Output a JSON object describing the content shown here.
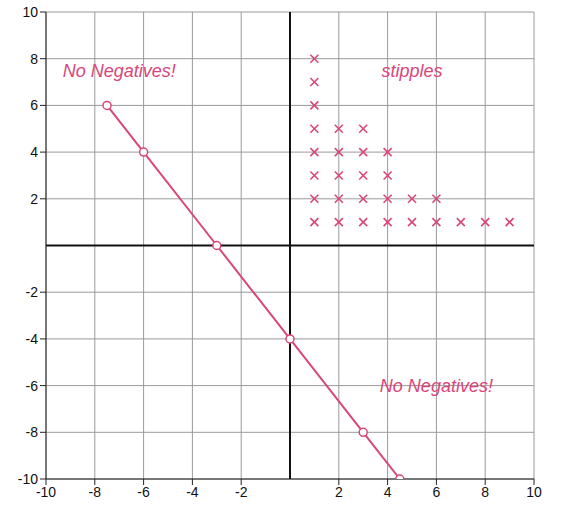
{
  "chart_data": {
    "type": "scatter",
    "xlim": [
      -10,
      10
    ],
    "ylim": [
      -10,
      10
    ],
    "xticks": [
      -10,
      -8,
      -6,
      -4,
      -2,
      2,
      4,
      6,
      8,
      10
    ],
    "yticks": [
      -10,
      -8,
      -6,
      -4,
      -2,
      2,
      4,
      6,
      8,
      10
    ],
    "grid": true,
    "series": [
      {
        "type": "line",
        "color": "#d9467a",
        "marker": "circle",
        "x": [
          -7.5,
          -6,
          -3,
          0,
          3,
          4.5
        ],
        "values": [
          6,
          4,
          0,
          -4,
          -8,
          -10
        ]
      },
      {
        "type": "scatter",
        "color": "#d9467a",
        "marker": "x",
        "x": [
          1,
          1,
          1,
          1,
          1,
          1,
          1,
          1,
          2,
          2,
          2,
          2,
          2,
          3,
          3,
          3,
          3,
          3,
          4,
          4,
          4,
          4,
          5,
          5,
          6,
          6,
          7,
          8,
          9
        ],
        "values": [
          1,
          2,
          3,
          4,
          5,
          6,
          7,
          8,
          1,
          2,
          3,
          4,
          5,
          1,
          2,
          3,
          4,
          5,
          1,
          2,
          3,
          4,
          1,
          2,
          1,
          2,
          1,
          1,
          1
        ]
      }
    ],
    "annotations": [
      {
        "text": "No Negatives!",
        "x": -7,
        "y": 7.5
      },
      {
        "text": "stipples",
        "x": 5,
        "y": 7.5
      },
      {
        "text": "No Negatives!",
        "x": 6,
        "y": -6
      }
    ]
  }
}
